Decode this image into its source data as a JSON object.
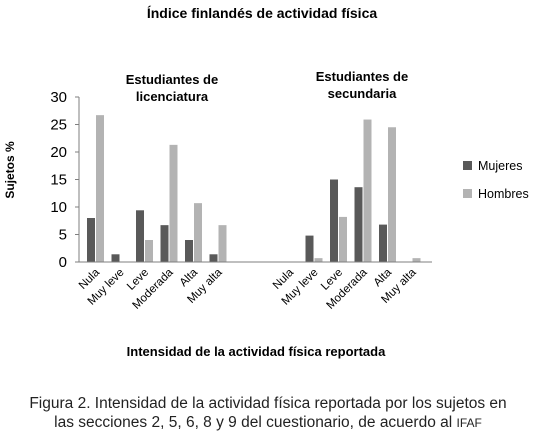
{
  "chart_data": {
    "type": "bar",
    "title": "Índice finlandés de actividad física",
    "xlabel": "Intensidad de la actividad física reportada",
    "ylabel": "Sujetos %",
    "ylim": [
      0,
      30
    ],
    "yticks": [
      0,
      5,
      10,
      15,
      20,
      25,
      30
    ],
    "grid": false,
    "legend_position": "right",
    "groups": [
      {
        "label_lines": [
          "Estudiantes de",
          "licenciatura"
        ],
        "categories": [
          "Nula",
          "Muy leve",
          "Leve",
          "Moderada",
          "Alta",
          "Muy alta"
        ],
        "series": [
          {
            "name": "Mujeres",
            "values": [
              8.0,
              1.4,
              9.4,
              6.7,
              4.0,
              1.4
            ]
          },
          {
            "name": "Hombres",
            "values": [
              26.7,
              0.0,
              4.0,
              21.3,
              10.7,
              6.7
            ]
          }
        ]
      },
      {
        "label_lines": [
          "Estudiantes de",
          "secundaria"
        ],
        "categories": [
          "Nula",
          "Muy leve",
          "Leve",
          "Moderada",
          "Alta",
          "Muy alta"
        ],
        "series": [
          {
            "name": "Mujeres",
            "values": [
              0.0,
              4.8,
              15.0,
              13.6,
              6.8,
              0.0
            ]
          },
          {
            "name": "Hombres",
            "values": [
              0.0,
              0.7,
              8.2,
              25.9,
              24.5,
              0.7
            ]
          }
        ]
      }
    ],
    "legend": [
      {
        "name": "Mujeres",
        "color": "#595959"
      },
      {
        "name": "Hombres",
        "color": "#b3b3b3"
      }
    ]
  },
  "caption": {
    "line1": "Figura 2. Intensidad de la actividad física reportada por los sujetos en",
    "line2": "las secciones 2, 5, 6, 8 y 9 del cuestionario, de acuerdo al ",
    "abbr": "IFAF"
  },
  "colors": {
    "mujeres": "#595959",
    "hombres": "#b3b3b3",
    "axis": "#7f7f7f"
  }
}
